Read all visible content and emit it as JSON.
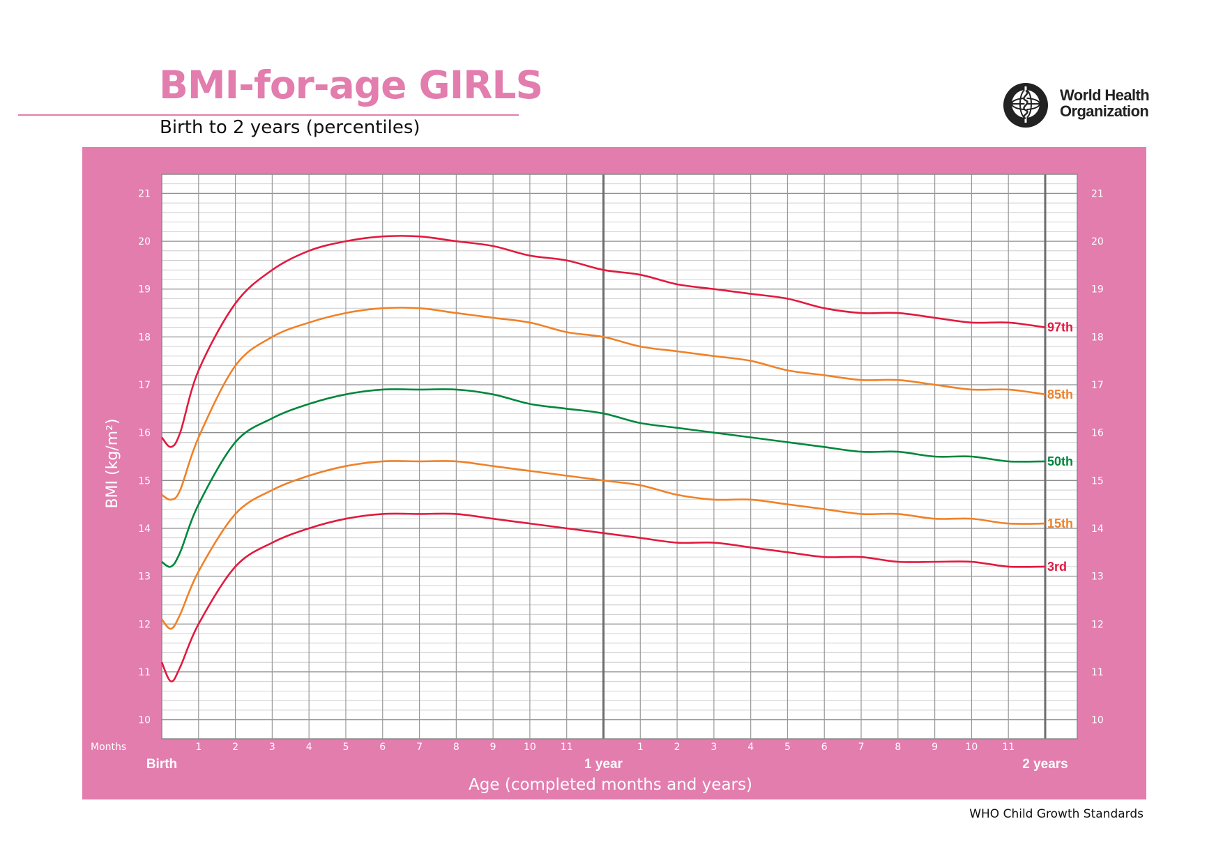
{
  "header": {
    "title": "BMI-for-age GIRLS",
    "subtitle": "Birth to 2 years (percentiles)"
  },
  "organization": {
    "name_line1": "World Health",
    "name_line2": "Organization"
  },
  "footer": "WHO Child Growth Standards",
  "colors": {
    "brand_pink": "#e27dae",
    "p97": "#e21a3e",
    "p85": "#f08128",
    "p50": "#00873c",
    "p15": "#f08128",
    "p3": "#e21a3e",
    "grid": "#a8a8a8"
  },
  "chart_data": {
    "type": "line",
    "xlabel": "Age (completed months and years)",
    "ylabel": "BMI (kg/m²)",
    "x_unit_label": "Months",
    "xlim": [
      0,
      24
    ],
    "ylim": [
      9.6,
      21.4
    ],
    "y_ticks": [
      10,
      11,
      12,
      13,
      14,
      15,
      16,
      17,
      18,
      19,
      20,
      21
    ],
    "x_month_ticks": [
      {
        "month": 1,
        "label": "1"
      },
      {
        "month": 2,
        "label": "2"
      },
      {
        "month": 3,
        "label": "3"
      },
      {
        "month": 4,
        "label": "4"
      },
      {
        "month": 5,
        "label": "5"
      },
      {
        "month": 6,
        "label": "6"
      },
      {
        "month": 7,
        "label": "7"
      },
      {
        "month": 8,
        "label": "8"
      },
      {
        "month": 9,
        "label": "9"
      },
      {
        "month": 10,
        "label": "10"
      },
      {
        "month": 11,
        "label": "11"
      },
      {
        "month": 13,
        "label": "1"
      },
      {
        "month": 14,
        "label": "2"
      },
      {
        "month": 15,
        "label": "3"
      },
      {
        "month": 16,
        "label": "4"
      },
      {
        "month": 17,
        "label": "5"
      },
      {
        "month": 18,
        "label": "6"
      },
      {
        "month": 19,
        "label": "7"
      },
      {
        "month": 20,
        "label": "8"
      },
      {
        "month": 21,
        "label": "9"
      },
      {
        "month": 22,
        "label": "10"
      },
      {
        "month": 23,
        "label": "11"
      }
    ],
    "x_milestones": [
      {
        "month": 0,
        "label": "Birth"
      },
      {
        "month": 12,
        "label": "1 year"
      },
      {
        "month": 24,
        "label": "2 years"
      }
    ],
    "grid": true,
    "x": [
      0,
      0.25,
      0.5,
      1,
      2,
      3,
      4,
      5,
      6,
      7,
      8,
      9,
      10,
      11,
      12,
      13,
      14,
      15,
      16,
      17,
      18,
      19,
      20,
      21,
      22,
      23,
      24
    ],
    "series": [
      {
        "name": "97th",
        "color_key": "p97",
        "values": [
          15.9,
          15.7,
          16.0,
          17.3,
          18.7,
          19.4,
          19.8,
          20.0,
          20.1,
          20.1,
          20.0,
          19.9,
          19.7,
          19.6,
          19.4,
          19.3,
          19.1,
          19.0,
          18.9,
          18.8,
          18.6,
          18.5,
          18.5,
          18.4,
          18.3,
          18.3,
          18.2
        ]
      },
      {
        "name": "85th",
        "color_key": "p85",
        "values": [
          14.7,
          14.6,
          14.8,
          15.9,
          17.4,
          18.0,
          18.3,
          18.5,
          18.6,
          18.6,
          18.5,
          18.4,
          18.3,
          18.1,
          18.0,
          17.8,
          17.7,
          17.6,
          17.5,
          17.3,
          17.2,
          17.1,
          17.1,
          17.0,
          16.9,
          16.9,
          16.8
        ]
      },
      {
        "name": "50th",
        "color_key": "p50",
        "values": [
          13.3,
          13.2,
          13.5,
          14.5,
          15.8,
          16.3,
          16.6,
          16.8,
          16.9,
          16.9,
          16.9,
          16.8,
          16.6,
          16.5,
          16.4,
          16.2,
          16.1,
          16.0,
          15.9,
          15.8,
          15.7,
          15.6,
          15.6,
          15.5,
          15.5,
          15.4,
          15.4
        ]
      },
      {
        "name": "15th",
        "color_key": "p15",
        "values": [
          12.1,
          11.9,
          12.2,
          13.1,
          14.3,
          14.8,
          15.1,
          15.3,
          15.4,
          15.4,
          15.4,
          15.3,
          15.2,
          15.1,
          15.0,
          14.9,
          14.7,
          14.6,
          14.6,
          14.5,
          14.4,
          14.3,
          14.3,
          14.2,
          14.2,
          14.1,
          14.1
        ]
      },
      {
        "name": "3rd",
        "color_key": "p3",
        "values": [
          11.2,
          10.8,
          11.1,
          12.0,
          13.2,
          13.7,
          14.0,
          14.2,
          14.3,
          14.3,
          14.3,
          14.2,
          14.1,
          14.0,
          13.9,
          13.8,
          13.7,
          13.7,
          13.6,
          13.5,
          13.4,
          13.4,
          13.3,
          13.3,
          13.3,
          13.2,
          13.2
        ]
      }
    ]
  }
}
